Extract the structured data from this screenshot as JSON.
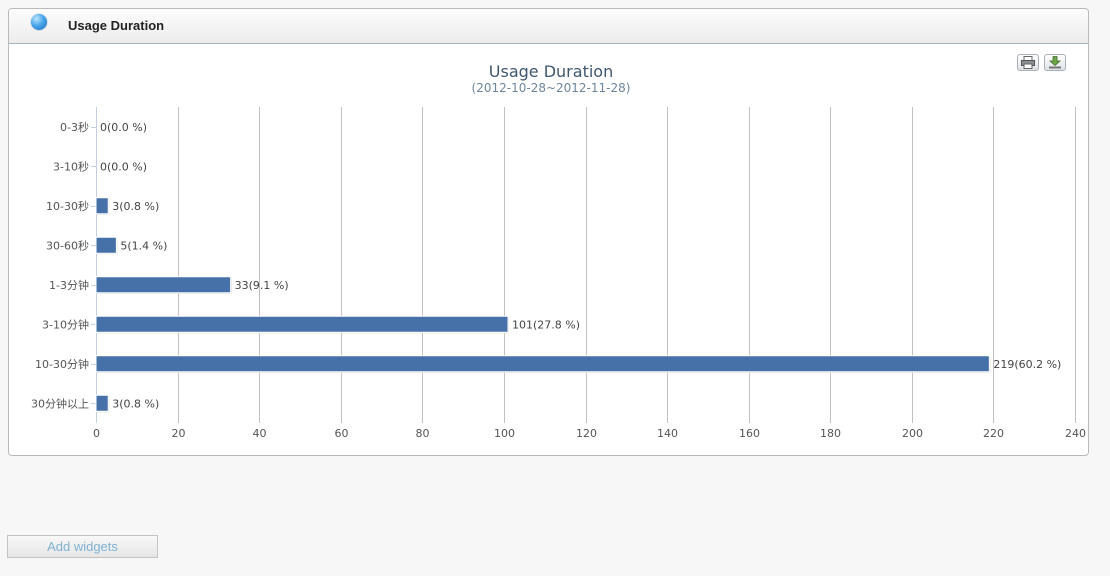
{
  "widget": {
    "title": "Usage Duration"
  },
  "chart_data": {
    "type": "bar",
    "orientation": "horizontal",
    "title": "Usage Duration",
    "subtitle": "(2012-10-28~2012-11-28)",
    "categories": [
      "0-3秒",
      "3-10秒",
      "10-30秒",
      "30-60秒",
      "1-3分钟",
      "3-10分钟",
      "10-30分钟",
      "30分钟以上"
    ],
    "values": [
      0,
      0,
      3,
      5,
      33,
      101,
      219,
      3
    ],
    "data_labels": [
      "0(0.0 %)",
      "0(0.0 %)",
      "3(0.8 %)",
      "5(1.4 %)",
      "33(9.1 %)",
      "101(27.8 %)",
      "219(60.2 %)",
      "3(0.8 %)"
    ],
    "xlim": [
      0,
      240
    ],
    "xticks": [
      0,
      20,
      40,
      60,
      80,
      100,
      120,
      140,
      160,
      180,
      200,
      220,
      240
    ],
    "grid": true,
    "bar_color": "#4571a8"
  },
  "footer": {
    "add_widgets_label": "Add widgets"
  }
}
